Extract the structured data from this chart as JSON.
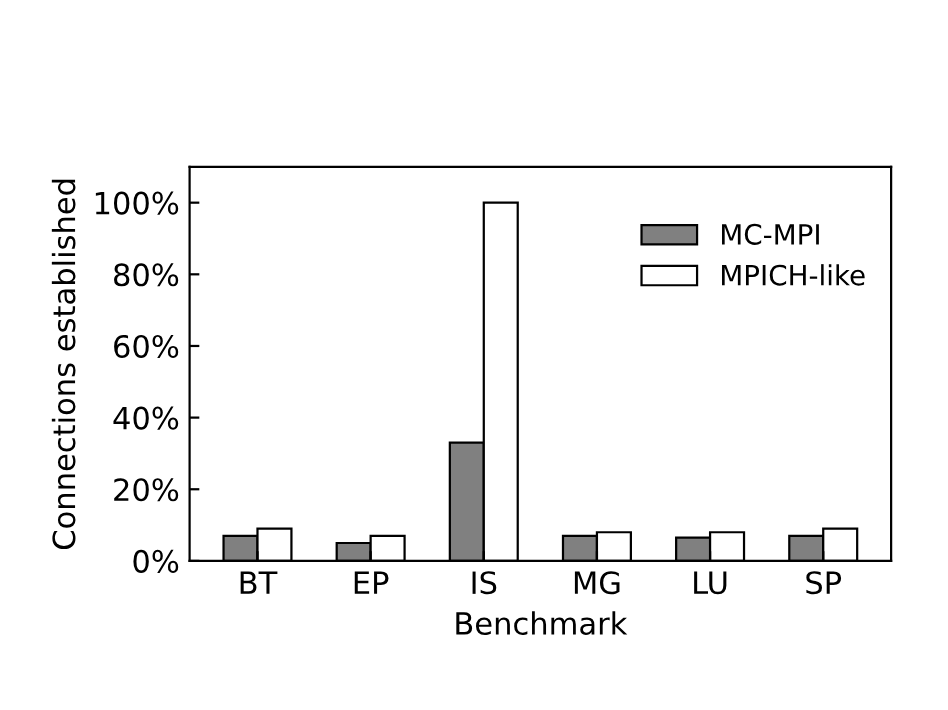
{
  "chart_data": {
    "type": "bar",
    "xlabel": "Benchmark",
    "ylabel": "Connections established",
    "categories": [
      "BT",
      "EP",
      "IS",
      "MG",
      "LU",
      "SP"
    ],
    "series": [
      {
        "name": "MC-MPI",
        "color": "#808080",
        "values": [
          7,
          5,
          33,
          7,
          6.5,
          7
        ]
      },
      {
        "name": "MPICH-like",
        "color": "#ffffff",
        "values": [
          9,
          7,
          100,
          8,
          8,
          9
        ]
      }
    ],
    "ylim": [
      0,
      110
    ],
    "yticks": [
      {
        "value": 0,
        "label": "0%"
      },
      {
        "value": 20,
        "label": "20%"
      },
      {
        "value": 40,
        "label": "40%"
      },
      {
        "value": 60,
        "label": "60%"
      },
      {
        "value": 80,
        "label": "80%"
      },
      {
        "value": 100,
        "label": "100%"
      }
    ],
    "grid": false,
    "legend": "top right"
  }
}
